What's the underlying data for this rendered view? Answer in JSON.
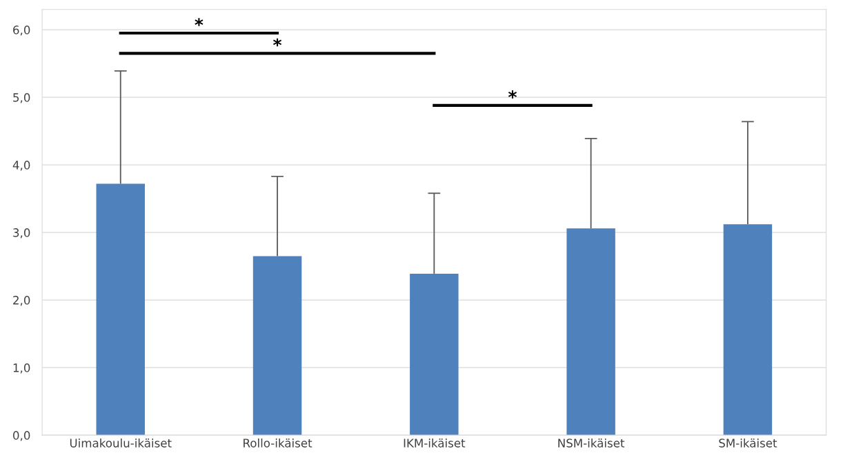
{
  "chart_data": {
    "type": "bar",
    "categories": [
      "Uimakoulu-ikäiset",
      "Rollo-ikäiset",
      "IKM-ikäiset",
      "NSM-ikäiset",
      "SM-ikäiset"
    ],
    "values": [
      3.72,
      2.65,
      2.39,
      3.06,
      3.12
    ],
    "errors": [
      [
        3.72,
        5.39
      ],
      [
        2.65,
        3.83
      ],
      [
        2.39,
        3.58
      ],
      [
        3.06,
        4.39
      ],
      [
        3.12,
        4.64
      ]
    ],
    "color": "#4f81bd",
    "ylim": [
      0,
      6.3
    ],
    "yticks": [
      {
        "value": 0,
        "label": "0,0"
      },
      {
        "value": 1,
        "label": "1,0"
      },
      {
        "value": 2,
        "label": "2,0"
      },
      {
        "value": 3,
        "label": "3,0"
      },
      {
        "value": 4,
        "label": "4,0"
      },
      {
        "value": 5,
        "label": "5,0"
      },
      {
        "value": 6,
        "label": "6,0"
      }
    ],
    "grid": "y",
    "annotations": [
      "*",
      "*",
      "*"
    ]
  }
}
